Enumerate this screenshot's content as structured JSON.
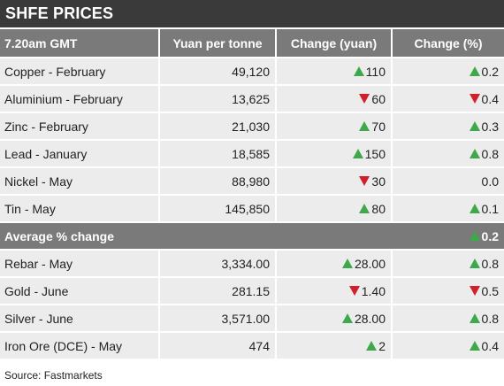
{
  "title": "SHFE PRICES",
  "headers": [
    "7.20am GMT",
    "Yuan per tonne",
    "Change (yuan)",
    "Change (%)"
  ],
  "rows": [
    {
      "name": "Copper - February",
      "price": "49,120",
      "change_yuan": "110",
      "change_pct": "0.2",
      "direction": "up",
      "pct_direction": "up"
    },
    {
      "name": "Aluminium - February",
      "price": "13,625",
      "change_yuan": "60",
      "change_pct": "0.4",
      "direction": "down",
      "pct_direction": "down"
    },
    {
      "name": "Zinc - February",
      "price": "21,030",
      "change_yuan": "70",
      "change_pct": "0.3",
      "direction": "up",
      "pct_direction": "up"
    },
    {
      "name": "Lead - January",
      "price": "18,585",
      "change_yuan": "150",
      "change_pct": "0.8",
      "direction": "up",
      "pct_direction": "up"
    },
    {
      "name": "Nickel - May",
      "price": "88,980",
      "change_yuan": "30",
      "change_pct": "0.0",
      "direction": "down",
      "pct_direction": "none"
    },
    {
      "name": "Tin - May",
      "price": "145,850",
      "change_yuan": "80",
      "change_pct": "0.1",
      "direction": "up",
      "pct_direction": "up"
    }
  ],
  "average": {
    "label": "Average % change",
    "value": "0.2",
    "direction": "up"
  },
  "rows2": [
    {
      "name": "Rebar - May",
      "price": "3,334.00",
      "change_yuan": "28.00",
      "change_pct": "0.8",
      "direction": "up",
      "pct_direction": "up"
    },
    {
      "name": "Gold  - June",
      "price": "281.15",
      "change_yuan": "1.40",
      "change_pct": "0.5",
      "direction": "down",
      "pct_direction": "down"
    },
    {
      "name": "Silver - June",
      "price": "3,571.00",
      "change_yuan": "28.00",
      "change_pct": "0.8",
      "direction": "up",
      "pct_direction": "up"
    },
    {
      "name": "Iron Ore (DCE) - May",
      "price": "474",
      "change_yuan": "2",
      "change_pct": "0.4",
      "direction": "up",
      "pct_direction": "up"
    }
  ],
  "source": "Source: Fastmarkets",
  "colors": {
    "up": "#3fa84a",
    "down": "#d0202a",
    "header": "#7a7a7a",
    "title": "#3a3a3a",
    "cell": "#ececec"
  }
}
